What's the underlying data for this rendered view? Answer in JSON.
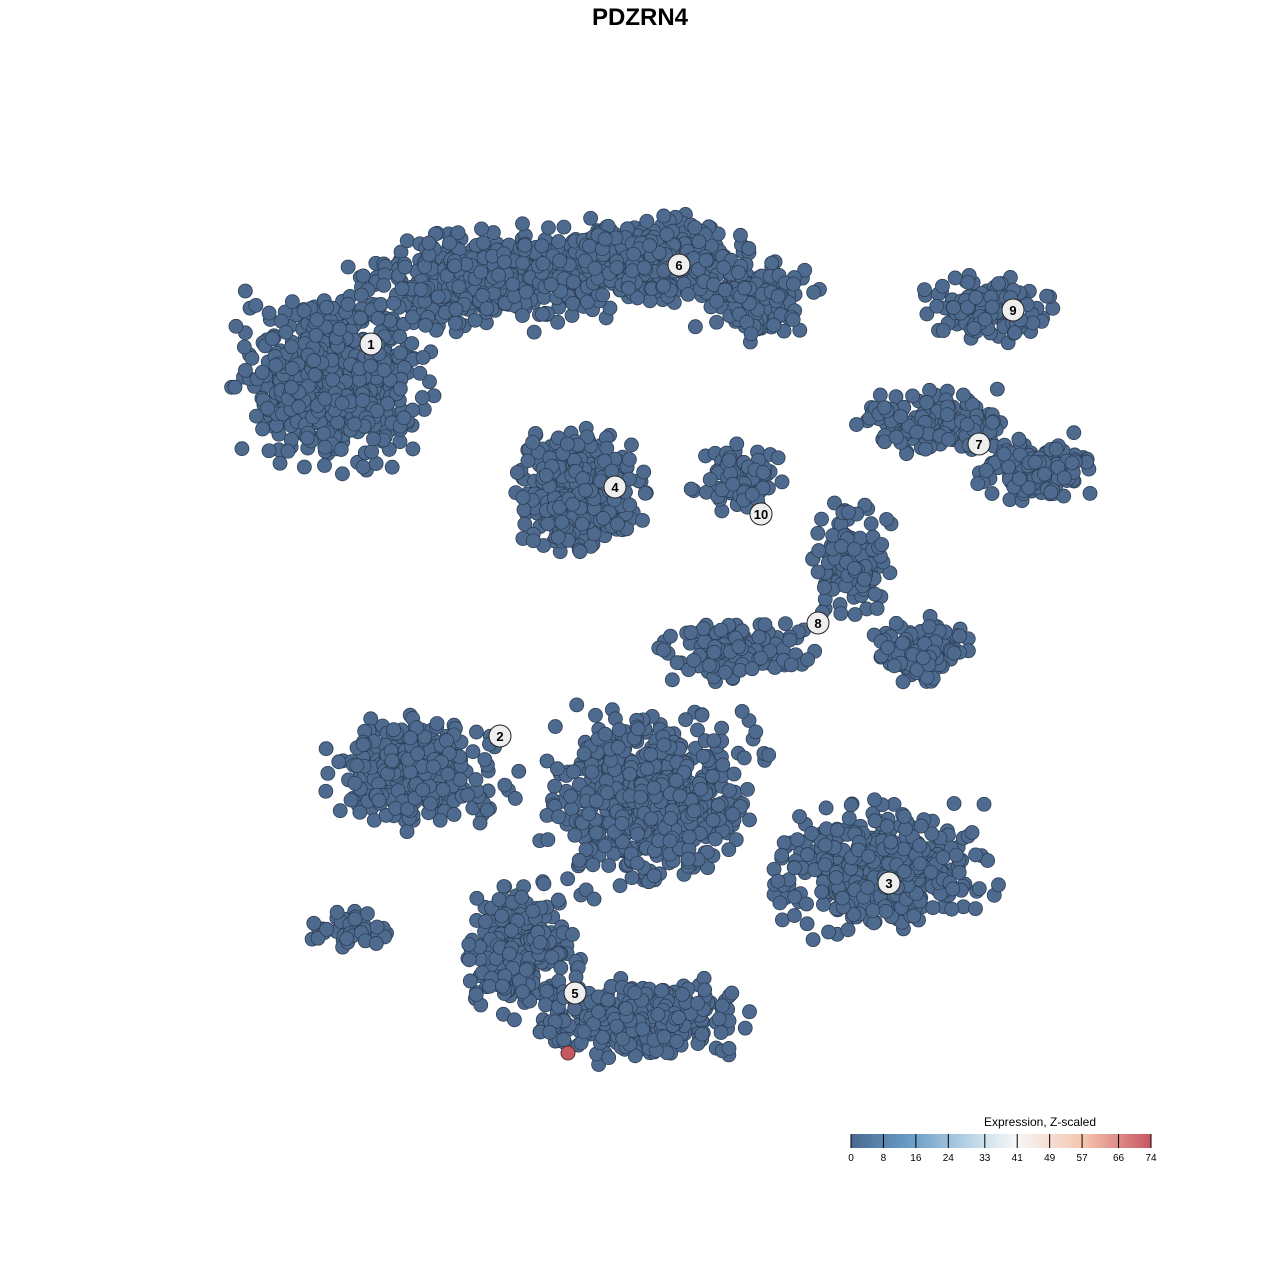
{
  "chart_data": {
    "type": "scatter",
    "title": "PDZRN4",
    "xlabel": "",
    "ylabel": "",
    "grid": false,
    "point_color_low": "#4e6b8f",
    "point_color_high": "#c45a62",
    "cluster_labels": [
      "1",
      "2",
      "3",
      "4",
      "5",
      "6",
      "7",
      "8",
      "9",
      "10"
    ],
    "highlighted_point": {
      "cluster": "5",
      "expression": 74
    },
    "legend": {
      "title": "Expression, Z-scaled",
      "placement": "bottom-right",
      "ticks": [
        0,
        8,
        16,
        24,
        33,
        41,
        49,
        57,
        66,
        74
      ],
      "range": [
        0,
        74
      ],
      "colors": [
        "#4a6a90",
        "#6a9dc8",
        "#cfe3ee",
        "#f7f7f7",
        "#f4c4ac",
        "#c75562"
      ]
    }
  }
}
